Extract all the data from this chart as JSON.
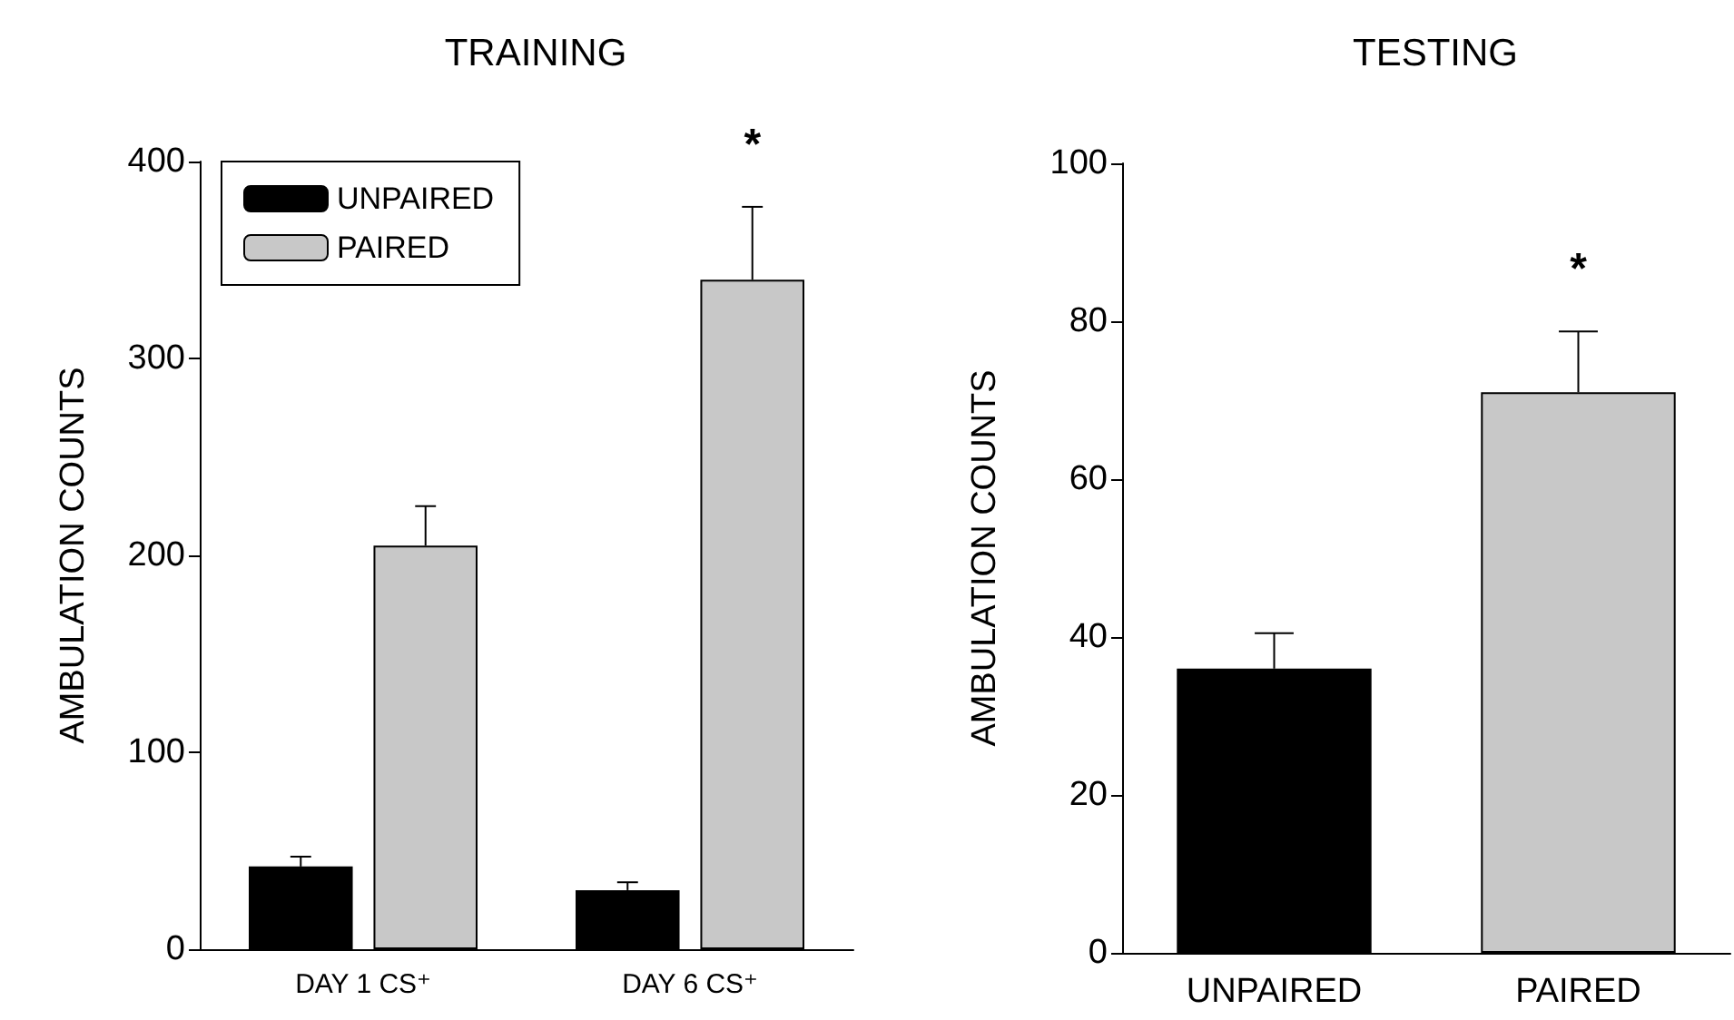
{
  "chart_data": [
    {
      "type": "bar",
      "title": "TRAINING",
      "ylabel": "AMBULATION COUNTS",
      "categories": [
        "DAY 1 CS⁺",
        "DAY 6 CS⁺"
      ],
      "series": [
        {
          "name": "UNPAIRED",
          "color": "#000000",
          "values": [
            42,
            30
          ],
          "errors": [
            [
              42,
              47
            ],
            [
              30,
              34
            ]
          ]
        },
        {
          "name": "PAIRED",
          "color": "#c8c8c8",
          "values": [
            205,
            340
          ],
          "errors": [
            [
              205,
              225
            ],
            [
              340,
              377
            ]
          ]
        }
      ],
      "ylim": [
        0,
        400
      ],
      "yticks": [
        0,
        100,
        200,
        300,
        400
      ],
      "grid": false,
      "legend": "top left",
      "annotations": [
        "*"
      ]
    },
    {
      "type": "bar",
      "title": "TESTING",
      "ylabel": "AMBULATION COUNTS",
      "categories": [
        "UNPAIRED",
        "PAIRED"
      ],
      "values": [
        36,
        71
      ],
      "errors": [
        [
          36,
          40.5
        ],
        [
          71,
          78.7
        ]
      ],
      "colors": [
        "#000000",
        "#c8c8c8"
      ],
      "ylim": [
        0,
        100
      ],
      "yticks": [
        0,
        20,
        40,
        60,
        80,
        100
      ],
      "grid": false,
      "legend": false,
      "annotations": [
        "*"
      ]
    }
  ]
}
